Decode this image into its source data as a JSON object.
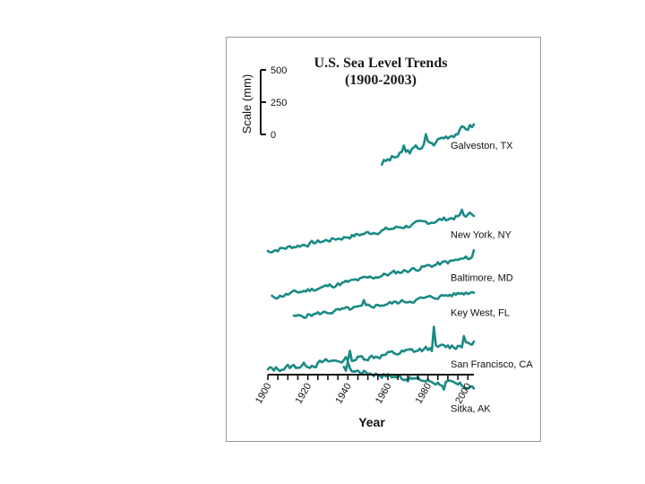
{
  "chart_data": {
    "type": "line",
    "title_line1": "U.S. Sea Level Trends",
    "title_line2": "(1900-2003)",
    "xlabel": "Year",
    "xlim": [
      1900,
      2003
    ],
    "x_ticks": [
      1900,
      1920,
      1940,
      1960,
      1980,
      2000
    ],
    "scale": {
      "label": "Scale (mm)",
      "ticks": [
        {
          "value": 500,
          "label": "500"
        },
        {
          "value": 250,
          "label": "250"
        },
        {
          "value": 0,
          "label": "0"
        }
      ]
    },
    "line_color": "#1a8a85",
    "series": [
      {
        "name": "Galveston, TX",
        "offset_mm": 1500,
        "trend_mm_per_year": 6.4,
        "start": 1957,
        "end": 2003,
        "amp": 45,
        "seed": 3,
        "spikes": [
          [
            1968,
            60
          ],
          [
            1979,
            70
          ],
          [
            1983,
            -40
          ]
        ]
      },
      {
        "name": "New York, NY",
        "offset_mm": 1000,
        "trend_mm_per_year": 2.8,
        "start": 1900,
        "end": 2003,
        "amp": 30,
        "seed": 7,
        "spikes": [
          [
            1997,
            40
          ]
        ]
      },
      {
        "name": "Baltimore, MD",
        "offset_mm": 650,
        "trend_mm_per_year": 3.1,
        "start": 1902,
        "end": 2003,
        "amp": 30,
        "seed": 11,
        "spikes": [
          [
            2003,
            50
          ]
        ]
      },
      {
        "name": "Key West, FL",
        "offset_mm": 430,
        "trend_mm_per_year": 2.2,
        "start": 1913,
        "end": 2003,
        "amp": 28,
        "seed": 5,
        "spikes": [
          [
            1948,
            35
          ]
        ]
      },
      {
        "name": "San Francisco, CA",
        "offset_mm": 40,
        "trend_mm_per_year": 2.0,
        "start": 1900,
        "end": 2003,
        "amp": 40,
        "seed": 13,
        "spikes": [
          [
            1941,
            55
          ],
          [
            1983,
            160
          ],
          [
            1998,
            80
          ]
        ]
      },
      {
        "name": "Sitka, AK",
        "offset_mm": -80,
        "trend_mm_per_year": -2.2,
        "start": 1938,
        "end": 2003,
        "amp": 38,
        "seed": 17,
        "spikes": [
          [
            1940,
            70
          ],
          [
            1988,
            -50
          ]
        ]
      }
    ]
  }
}
